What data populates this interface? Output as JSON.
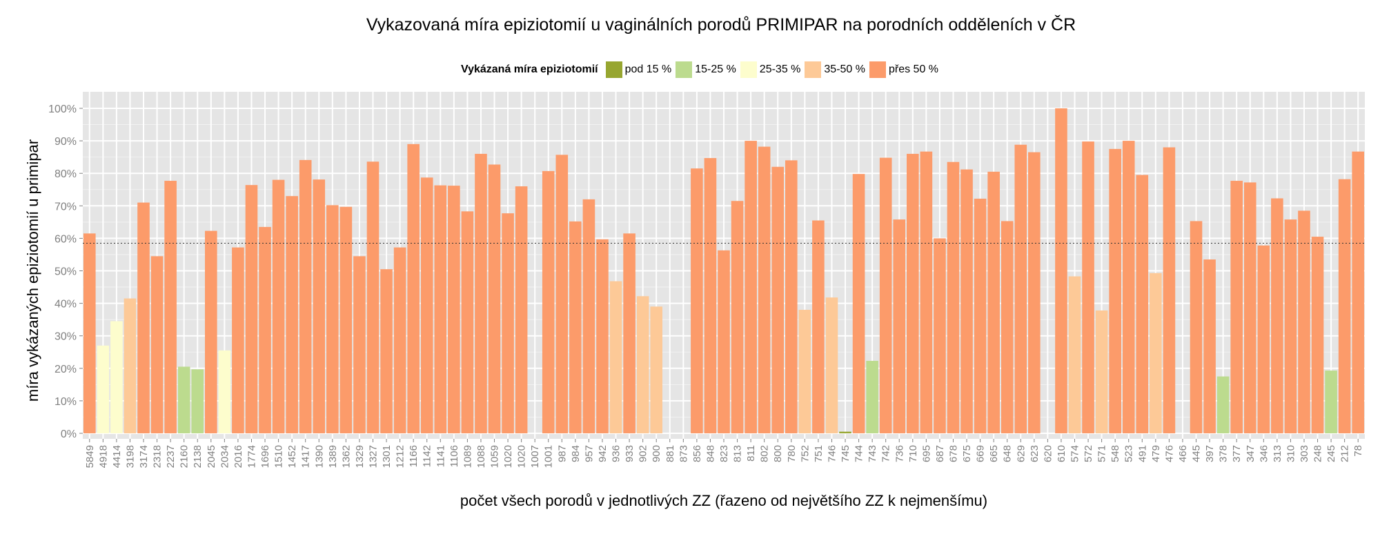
{
  "chart_data": {
    "type": "bar",
    "title": "Vykazovaná míra epiziotomií u vaginálních porodů PRIMIPAR na porodních odděleních v ČR",
    "xlabel": "počet všech porodů v jednotlivých ZZ (řazeno od největšího ZZ k nejmenšímu)",
    "ylabel": "míra vykázaných epiziotomií u primipar",
    "ylim": [
      0,
      1
    ],
    "y_ticks": [
      "0%",
      "10%",
      "20%",
      "30%",
      "40%",
      "50%",
      "60%",
      "70%",
      "80%",
      "90%",
      "100%"
    ],
    "reference_line": 0.585,
    "grid": true,
    "legend": {
      "title": "Vykázaná míra epiziotomií",
      "position": "top",
      "items": [
        {
          "label": "pod 15 %",
          "color": "#97a630"
        },
        {
          "label": "15-25 %",
          "color": "#bcdb8e"
        },
        {
          "label": "25-35 %",
          "color": "#fdfdcd"
        },
        {
          "label": "35-50 %",
          "color": "#fdc997"
        },
        {
          "label": "přes 50 %",
          "color": "#fc9b6a"
        }
      ]
    },
    "categories": [
      "5849",
      "4918",
      "4414",
      "3198",
      "3174",
      "2318",
      "2237",
      "2160",
      "2138",
      "2045",
      "2034",
      "2016",
      "1774",
      "1696",
      "1510",
      "1452",
      "1417",
      "1390",
      "1389",
      "1362",
      "1329",
      "1327",
      "1301",
      "1212",
      "1166",
      "1142",
      "1141",
      "1106",
      "1089",
      "1088",
      "1059",
      "1020",
      "1020",
      "1007",
      "1001",
      "987",
      "984",
      "957",
      "942",
      "936",
      "933",
      "902",
      "900",
      "881",
      "873",
      "856",
      "848",
      "823",
      "813",
      "811",
      "802",
      "800",
      "780",
      "752",
      "751",
      "746",
      "745",
      "744",
      "743",
      "742",
      "736",
      "710",
      "695",
      "687",
      "678",
      "675",
      "669",
      "665",
      "648",
      "629",
      "623",
      "620",
      "610",
      "574",
      "572",
      "571",
      "548",
      "523",
      "491",
      "479",
      "476",
      "466",
      "445",
      "397",
      "378",
      "377",
      "347",
      "346",
      "313",
      "310",
      "303",
      "248",
      "245",
      "212",
      "78"
    ],
    "values": [
      0.615,
      0.27,
      0.345,
      0.415,
      0.71,
      0.545,
      0.777,
      0.205,
      0.197,
      0.623,
      0.255,
      0.572,
      0.764,
      0.635,
      0.78,
      0.73,
      0.841,
      0.781,
      0.702,
      0.697,
      0.545,
      0.836,
      0.505,
      0.572,
      0.89,
      0.787,
      0.763,
      0.762,
      0.683,
      0.86,
      0.827,
      0.677,
      0.76,
      0,
      0.807,
      0.857,
      0.652,
      0.72,
      0.597,
      0.468,
      0.615,
      0.422,
      0.39,
      0,
      0,
      0.815,
      0.847,
      0.563,
      0.715,
      0.9,
      0.882,
      0.82,
      0.84,
      0.38,
      0.655,
      0.418,
      0.005,
      0.798,
      0.223,
      0.848,
      0.658,
      0.86,
      0.867,
      0.6,
      0.835,
      0.812,
      0.722,
      0.805,
      0.653,
      0.888,
      0.865,
      0,
      1.0,
      0.483,
      0.898,
      0.378,
      0.875,
      0.9,
      0.795,
      0.493,
      0.88,
      0,
      0.653,
      0.535,
      0.175,
      0.777,
      0.772,
      0.578,
      0.723,
      0.658,
      0.685,
      0.605,
      0.193,
      0.782,
      0.867
    ]
  }
}
